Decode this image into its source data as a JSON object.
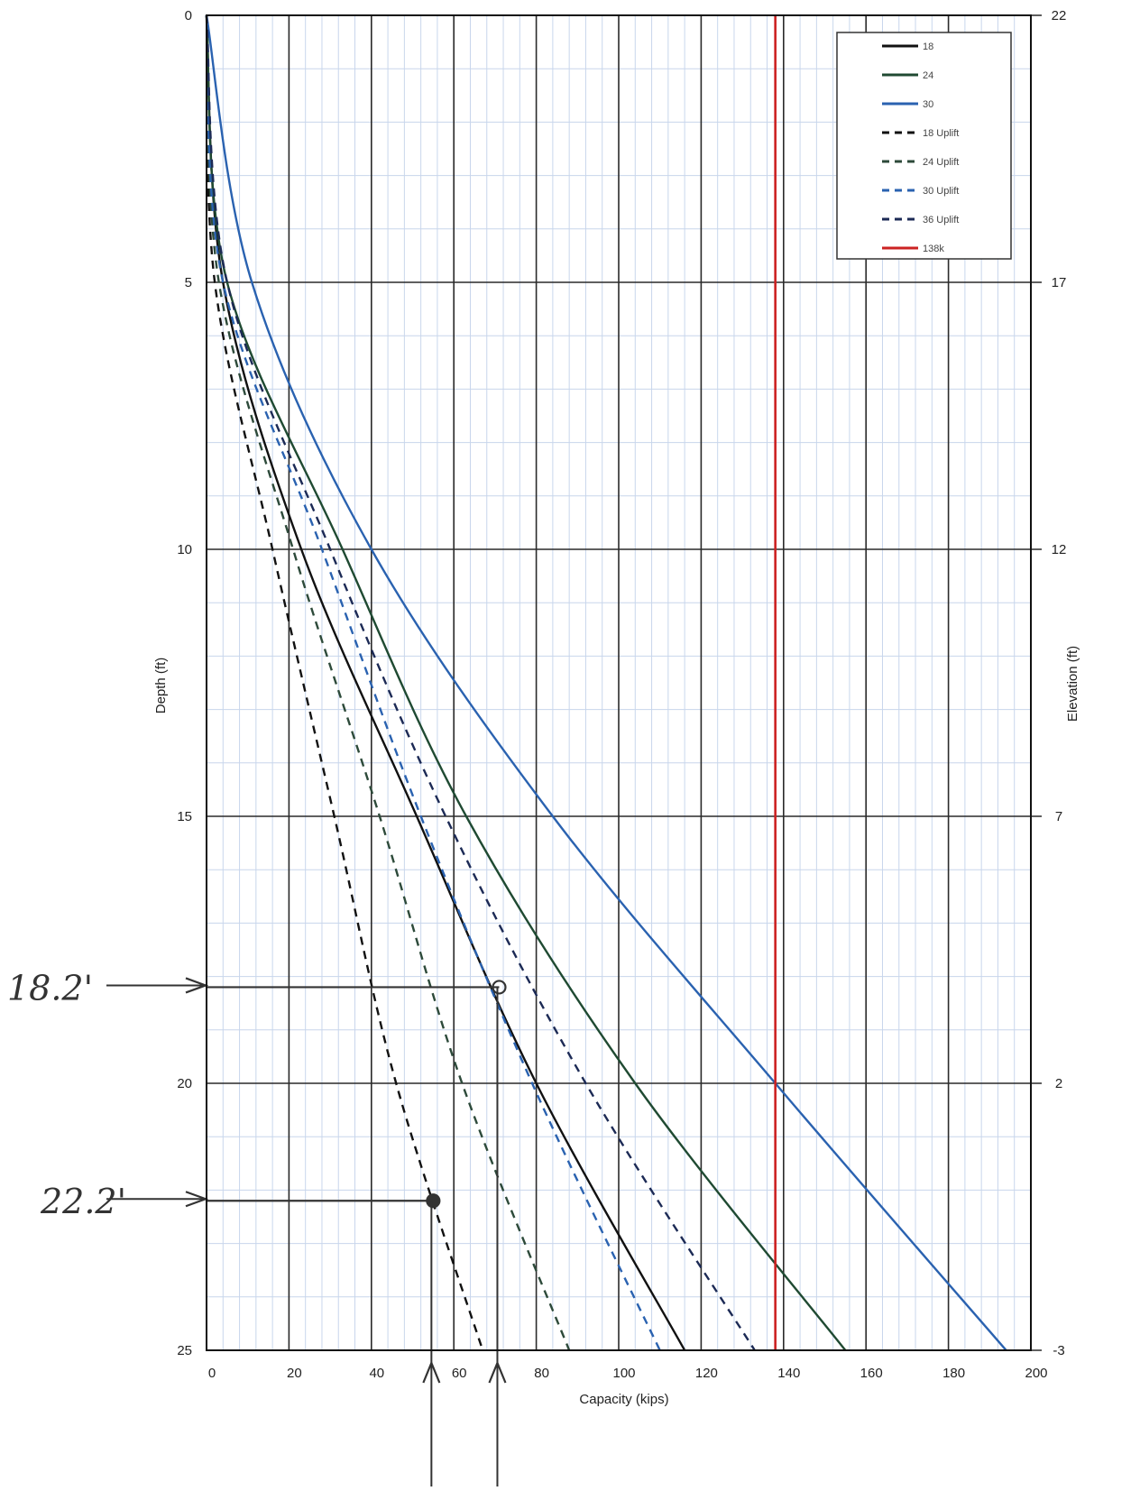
{
  "chart_data": {
    "type": "line",
    "xlabel": "Capacity (kips)",
    "ylabel": "Depth (ft)",
    "y2label": "Elevation (ft)",
    "xlim": [
      0,
      200
    ],
    "ylim": [
      0,
      25
    ],
    "y_inverted": true,
    "x_ticks": [
      "0",
      "20",
      "40",
      "60",
      "80",
      "100",
      "120",
      "140",
      "160",
      "180",
      "200"
    ],
    "y_ticks": [
      "0",
      "5",
      "10",
      "15",
      "20",
      "25"
    ],
    "y2_ticks": [
      "22",
      "17",
      "12",
      "7",
      "2",
      "-3"
    ],
    "grid": true,
    "legend_position": "top-right",
    "series": [
      {
        "name": "18",
        "color": "#111111",
        "dash": "solid",
        "depth": [
          0,
          5,
          10,
          15,
          20,
          25
        ],
        "capacity": [
          0,
          4,
          23,
          51,
          80,
          116
        ]
      },
      {
        "name": "24",
        "color": "#1f4a32",
        "dash": "solid",
        "depth": [
          0,
          5,
          10,
          15,
          20,
          25
        ],
        "capacity": [
          0,
          5,
          33,
          63,
          104,
          155
        ]
      },
      {
        "name": "30",
        "color": "#2a62b0",
        "dash": "solid",
        "depth": [
          0,
          5,
          10,
          15,
          20,
          25
        ],
        "capacity": [
          0,
          11,
          40,
          84,
          138,
          194
        ]
      },
      {
        "name": "18 Uplift",
        "color": "#111111",
        "dash": "dashed",
        "depth": [
          0,
          5,
          10,
          15,
          20,
          25
        ],
        "capacity": [
          0,
          2,
          16,
          31,
          46,
          67
        ]
      },
      {
        "name": "24 Uplift",
        "color": "#2d4a3a",
        "dash": "dashed",
        "depth": [
          0,
          5,
          10,
          15,
          20,
          25
        ],
        "capacity": [
          0,
          3,
          21,
          42,
          62,
          88
        ]
      },
      {
        "name": "30 Uplift",
        "color": "#2a62b0",
        "dash": "dashed",
        "depth": [
          0,
          5,
          10,
          15,
          20,
          25
        ],
        "capacity": [
          0,
          4,
          28,
          52,
          79,
          110
        ]
      },
      {
        "name": "36 Uplift",
        "color": "#1c2a55",
        "dash": "dashed",
        "depth": [
          0,
          5,
          10,
          15,
          20,
          25
        ],
        "capacity": [
          0,
          5,
          30,
          58,
          92,
          133
        ]
      },
      {
        "name": "138k",
        "color": "#cc2222",
        "dash": "solid",
        "depth": [
          0,
          25
        ],
        "capacity": [
          138,
          138
        ]
      }
    ],
    "annotations": [
      {
        "label": "18.2'",
        "depth": 18.2,
        "capacity": 71
      },
      {
        "label": "22.2'",
        "depth": 22.2,
        "capacity": 55
      }
    ]
  }
}
